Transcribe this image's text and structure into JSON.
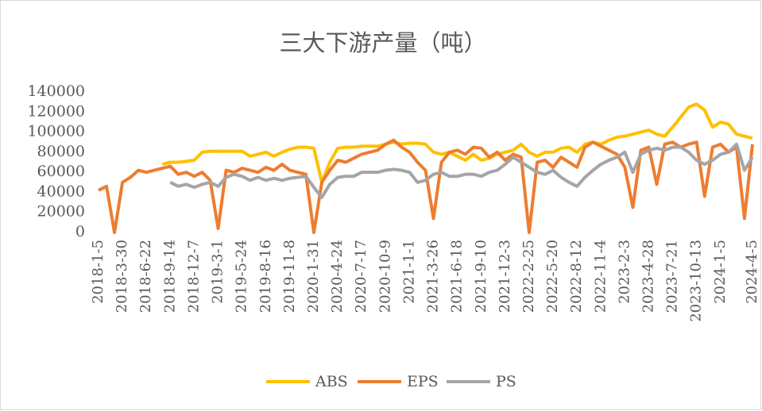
{
  "chart_data": {
    "type": "line",
    "title": "三大下游产量（吨）",
    "categories": [
      "2018-1-5",
      null,
      null,
      "2018-3-30",
      null,
      null,
      "2018-6-22",
      null,
      null,
      "2018-9-14",
      null,
      null,
      "2018-12-7",
      null,
      null,
      "2019-3-1",
      null,
      null,
      "2019-5-24",
      null,
      null,
      "2019-8-16",
      null,
      null,
      "2019-11-8",
      null,
      null,
      "2020-1-31",
      null,
      null,
      "2020-4-24",
      null,
      null,
      "2020-7-17",
      null,
      null,
      "2020-10-9",
      null,
      null,
      "2021-1-1",
      null,
      null,
      "2021-3-26",
      null,
      null,
      "2021-6-18",
      null,
      null,
      "2021-9-10",
      null,
      null,
      "2021-12-3",
      null,
      null,
      "2022-2-25",
      null,
      null,
      "2022-5-20",
      null,
      null,
      "2022-8-12",
      null,
      null,
      "2022-11-4",
      null,
      null,
      "2023-2-3",
      null,
      null,
      "2023-4-28",
      null,
      null,
      "2023-7-21",
      null,
      null,
      "2023-10-13",
      null,
      null,
      "2024-1-5",
      null,
      null,
      null,
      "2024-4-5"
    ],
    "series": [
      {
        "name": "ABS",
        "color": "#ffc000",
        "values": [
          null,
          null,
          null,
          null,
          null,
          null,
          null,
          null,
          68000,
          70000,
          70000,
          71000,
          72000,
          80000,
          81000,
          81000,
          81000,
          81000,
          81000,
          76000,
          78000,
          80000,
          76000,
          80000,
          83000,
          85000,
          85000,
          84000,
          50000,
          70000,
          84000,
          85000,
          85000,
          86000,
          86000,
          86000,
          88000,
          90000,
          88000,
          89000,
          89000,
          88000,
          80000,
          78000,
          80000,
          76000,
          72000,
          78000,
          72000,
          74000,
          78000,
          80000,
          82000,
          88000,
          80000,
          76000,
          80000,
          80000,
          84000,
          85000,
          80000,
          88000,
          90000,
          88000,
          92000,
          95000,
          96000,
          98000,
          100000,
          102000,
          98000,
          96000,
          105000,
          115000,
          125000,
          128000,
          122000,
          105000,
          110000,
          108000,
          98000,
          96000,
          94000
        ]
      },
      {
        "name": "EPS",
        "color": "#ed7d31",
        "values": [
          42000,
          46000,
          0,
          50000,
          55000,
          62000,
          60000,
          62000,
          64000,
          66000,
          58000,
          60000,
          56000,
          60000,
          52000,
          4000,
          62000,
          60000,
          64000,
          62000,
          60000,
          65000,
          62000,
          68000,
          62000,
          60000,
          58000,
          0,
          50000,
          62000,
          72000,
          70000,
          74000,
          78000,
          80000,
          82000,
          88000,
          92000,
          85000,
          80000,
          70000,
          62000,
          14000,
          70000,
          80000,
          82000,
          78000,
          85000,
          84000,
          75000,
          80000,
          72000,
          78000,
          75000,
          0,
          70000,
          72000,
          65000,
          75000,
          70000,
          65000,
          85000,
          90000,
          86000,
          82000,
          78000,
          65000,
          25000,
          82000,
          85000,
          48000,
          88000,
          90000,
          85000,
          88000,
          90000,
          36000,
          85000,
          88000,
          80000,
          85000,
          14000,
          88000
        ]
      },
      {
        "name": "PS",
        "color": "#a5a5a5",
        "values": [
          null,
          null,
          null,
          null,
          null,
          null,
          null,
          null,
          null,
          50000,
          46000,
          48000,
          45000,
          48000,
          50000,
          46000,
          55000,
          58000,
          56000,
          52000,
          55000,
          52000,
          54000,
          52000,
          54000,
          55000,
          56000,
          45000,
          35000,
          48000,
          55000,
          56000,
          56000,
          60000,
          60000,
          60000,
          62000,
          63000,
          62000,
          60000,
          50000,
          52000,
          58000,
          60000,
          56000,
          56000,
          58000,
          58000,
          56000,
          60000,
          62000,
          68000,
          75000,
          70000,
          65000,
          60000,
          58000,
          62000,
          55000,
          50000,
          46000,
          55000,
          62000,
          68000,
          72000,
          75000,
          80000,
          60000,
          78000,
          82000,
          84000,
          82000,
          85000,
          85000,
          80000,
          72000,
          68000,
          72000,
          78000,
          80000,
          88000,
          62000,
          75000
        ]
      }
    ],
    "ylim": [
      0,
      140000
    ],
    "yticks": [
      0,
      20000,
      40000,
      60000,
      80000,
      100000,
      120000,
      140000
    ],
    "grid": false,
    "legend": "bottom"
  }
}
